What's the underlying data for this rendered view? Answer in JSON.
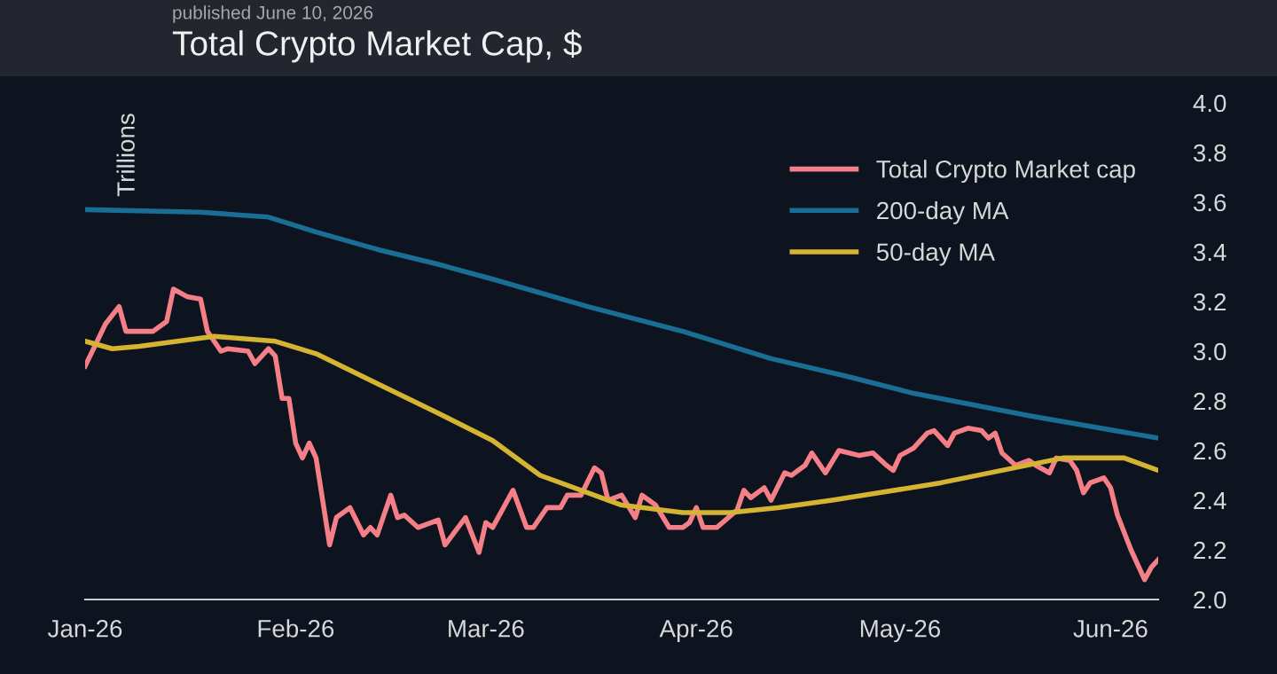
{
  "chart_data": {
    "type": "line",
    "title": "Total Crypto Market Cap, $",
    "subtitle": "published June 10, 2026",
    "ylabel": "Trillions",
    "xlim": [
      "2026-01-01",
      "2026-06-08"
    ],
    "xticks": [
      {
        "value": "2026-01-01",
        "label": "Jan-26"
      },
      {
        "value": "2026-02-01",
        "label": "Feb-26"
      },
      {
        "value": "2026-03-01",
        "label": "Mar-26"
      },
      {
        "value": "2026-04-01",
        "label": "Apr-26"
      },
      {
        "value": "2026-05-01",
        "label": "May-26"
      },
      {
        "value": "2026-06-01",
        "label": "Jun-26"
      }
    ],
    "ylim": [
      2.0,
      4.0
    ],
    "yticks": [
      {
        "value": 2.0,
        "label": "2.0"
      },
      {
        "value": 2.2,
        "label": "2.2"
      },
      {
        "value": 2.4,
        "label": "2.4"
      },
      {
        "value": 2.6,
        "label": "2.6"
      },
      {
        "value": 2.8,
        "label": "2.8"
      },
      {
        "value": 3.0,
        "label": "3.0"
      },
      {
        "value": 3.2,
        "label": "3.2"
      },
      {
        "value": 3.4,
        "label": "3.4"
      },
      {
        "value": 3.6,
        "label": "3.6"
      },
      {
        "value": 3.8,
        "label": "3.8"
      },
      {
        "value": 4.0,
        "label": "4.0"
      }
    ],
    "grid": false,
    "legend": "top right",
    "marker": "none",
    "line_style": "solid",
    "series": [
      {
        "name": "Total Crypto Market cap",
        "color": "#f47f86",
        "x": [
          "2026-01-01",
          "2026-01-04",
          "2026-01-06",
          "2026-01-07",
          "2026-01-09",
          "2026-01-11",
          "2026-01-13",
          "2026-01-14",
          "2026-01-16",
          "2026-01-18",
          "2026-01-19",
          "2026-01-21",
          "2026-01-22",
          "2026-01-25",
          "2026-01-26",
          "2026-01-28",
          "2026-01-29",
          "2026-01-30",
          "2026-01-31",
          "2026-02-01",
          "2026-02-02",
          "2026-02-03",
          "2026-02-04",
          "2026-02-06",
          "2026-02-07",
          "2026-02-09",
          "2026-02-11",
          "2026-02-12",
          "2026-02-13",
          "2026-02-15",
          "2026-02-16",
          "2026-02-17",
          "2026-02-19",
          "2026-02-22",
          "2026-02-23",
          "2026-02-26",
          "2026-02-28",
          "2026-03-01",
          "2026-03-02",
          "2026-03-03",
          "2026-03-05",
          "2026-03-07",
          "2026-03-08",
          "2026-03-10",
          "2026-03-12",
          "2026-03-13",
          "2026-03-15",
          "2026-03-17",
          "2026-03-18",
          "2026-03-19",
          "2026-03-21",
          "2026-03-23",
          "2026-03-24",
          "2026-03-26",
          "2026-03-28",
          "2026-03-30",
          "2026-03-31",
          "2026-04-01",
          "2026-04-02",
          "2026-04-04",
          "2026-04-07",
          "2026-04-08",
          "2026-04-09",
          "2026-04-11",
          "2026-04-12",
          "2026-04-14",
          "2026-04-15",
          "2026-04-17",
          "2026-04-18",
          "2026-04-20",
          "2026-04-22",
          "2026-04-25",
          "2026-04-27",
          "2026-04-29",
          "2026-04-30",
          "2026-05-01",
          "2026-05-03",
          "2026-05-05",
          "2026-05-06",
          "2026-05-08",
          "2026-05-09",
          "2026-05-11",
          "2026-05-13",
          "2026-05-14",
          "2026-05-15",
          "2026-05-16",
          "2026-05-18",
          "2026-05-20",
          "2026-05-21",
          "2026-05-23",
          "2026-05-24",
          "2026-05-26",
          "2026-05-27",
          "2026-05-28",
          "2026-05-29",
          "2026-05-31",
          "2026-06-01",
          "2026-06-02",
          "2026-06-04",
          "2026-06-06",
          "2026-06-07",
          "2026-06-08"
        ],
        "values": [
          2.94,
          3.11,
          3.18,
          3.08,
          3.08,
          3.08,
          3.12,
          3.25,
          3.22,
          3.21,
          3.08,
          3.0,
          3.01,
          3.0,
          2.95,
          3.01,
          2.98,
          2.81,
          2.81,
          2.63,
          2.57,
          2.63,
          2.57,
          2.22,
          2.33,
          2.37,
          2.26,
          2.29,
          2.26,
          2.42,
          2.33,
          2.34,
          2.29,
          2.32,
          2.22,
          2.33,
          2.19,
          2.31,
          2.29,
          2.34,
          2.44,
          2.29,
          2.29,
          2.37,
          2.37,
          2.42,
          2.42,
          2.53,
          2.51,
          2.4,
          2.42,
          2.33,
          2.42,
          2.38,
          2.29,
          2.29,
          2.31,
          2.37,
          2.29,
          2.29,
          2.36,
          2.44,
          2.41,
          2.45,
          2.4,
          2.51,
          2.5,
          2.54,
          2.59,
          2.51,
          2.6,
          2.58,
          2.59,
          2.54,
          2.52,
          2.58,
          2.61,
          2.67,
          2.68,
          2.62,
          2.67,
          2.69,
          2.68,
          2.65,
          2.67,
          2.59,
          2.54,
          2.56,
          2.54,
          2.51,
          2.57,
          2.56,
          2.52,
          2.43,
          2.47,
          2.49,
          2.45,
          2.34,
          2.2,
          2.08,
          2.13,
          2.16
        ]
      },
      {
        "name": "200-day MA",
        "color": "#1a6e94",
        "x": [
          "2026-01-01",
          "2026-01-18",
          "2026-01-28",
          "2026-02-04",
          "2026-02-13",
          "2026-02-22",
          "2026-03-02",
          "2026-03-16",
          "2026-03-30",
          "2026-04-12",
          "2026-04-23",
          "2026-05-03",
          "2026-05-20",
          "2026-06-08"
        ],
        "values": [
          3.57,
          3.56,
          3.54,
          3.48,
          3.41,
          3.35,
          3.29,
          3.18,
          3.08,
          2.97,
          2.9,
          2.83,
          2.74,
          2.65
        ]
      },
      {
        "name": "50-day MA",
        "color": "#d4b431",
        "x": [
          "2026-01-01",
          "2026-01-05",
          "2026-01-09",
          "2026-01-20",
          "2026-01-29",
          "2026-02-04",
          "2026-02-13",
          "2026-02-22",
          "2026-03-02",
          "2026-03-09",
          "2026-03-21",
          "2026-03-30",
          "2026-04-06",
          "2026-04-13",
          "2026-04-21",
          "2026-04-28",
          "2026-05-07",
          "2026-05-16",
          "2026-05-25",
          "2026-06-03",
          "2026-06-08"
        ],
        "values": [
          3.04,
          3.01,
          3.02,
          3.06,
          3.04,
          2.99,
          2.87,
          2.75,
          2.64,
          2.5,
          2.38,
          2.35,
          2.35,
          2.37,
          2.4,
          2.43,
          2.47,
          2.52,
          2.57,
          2.57,
          2.52
        ]
      }
    ]
  }
}
